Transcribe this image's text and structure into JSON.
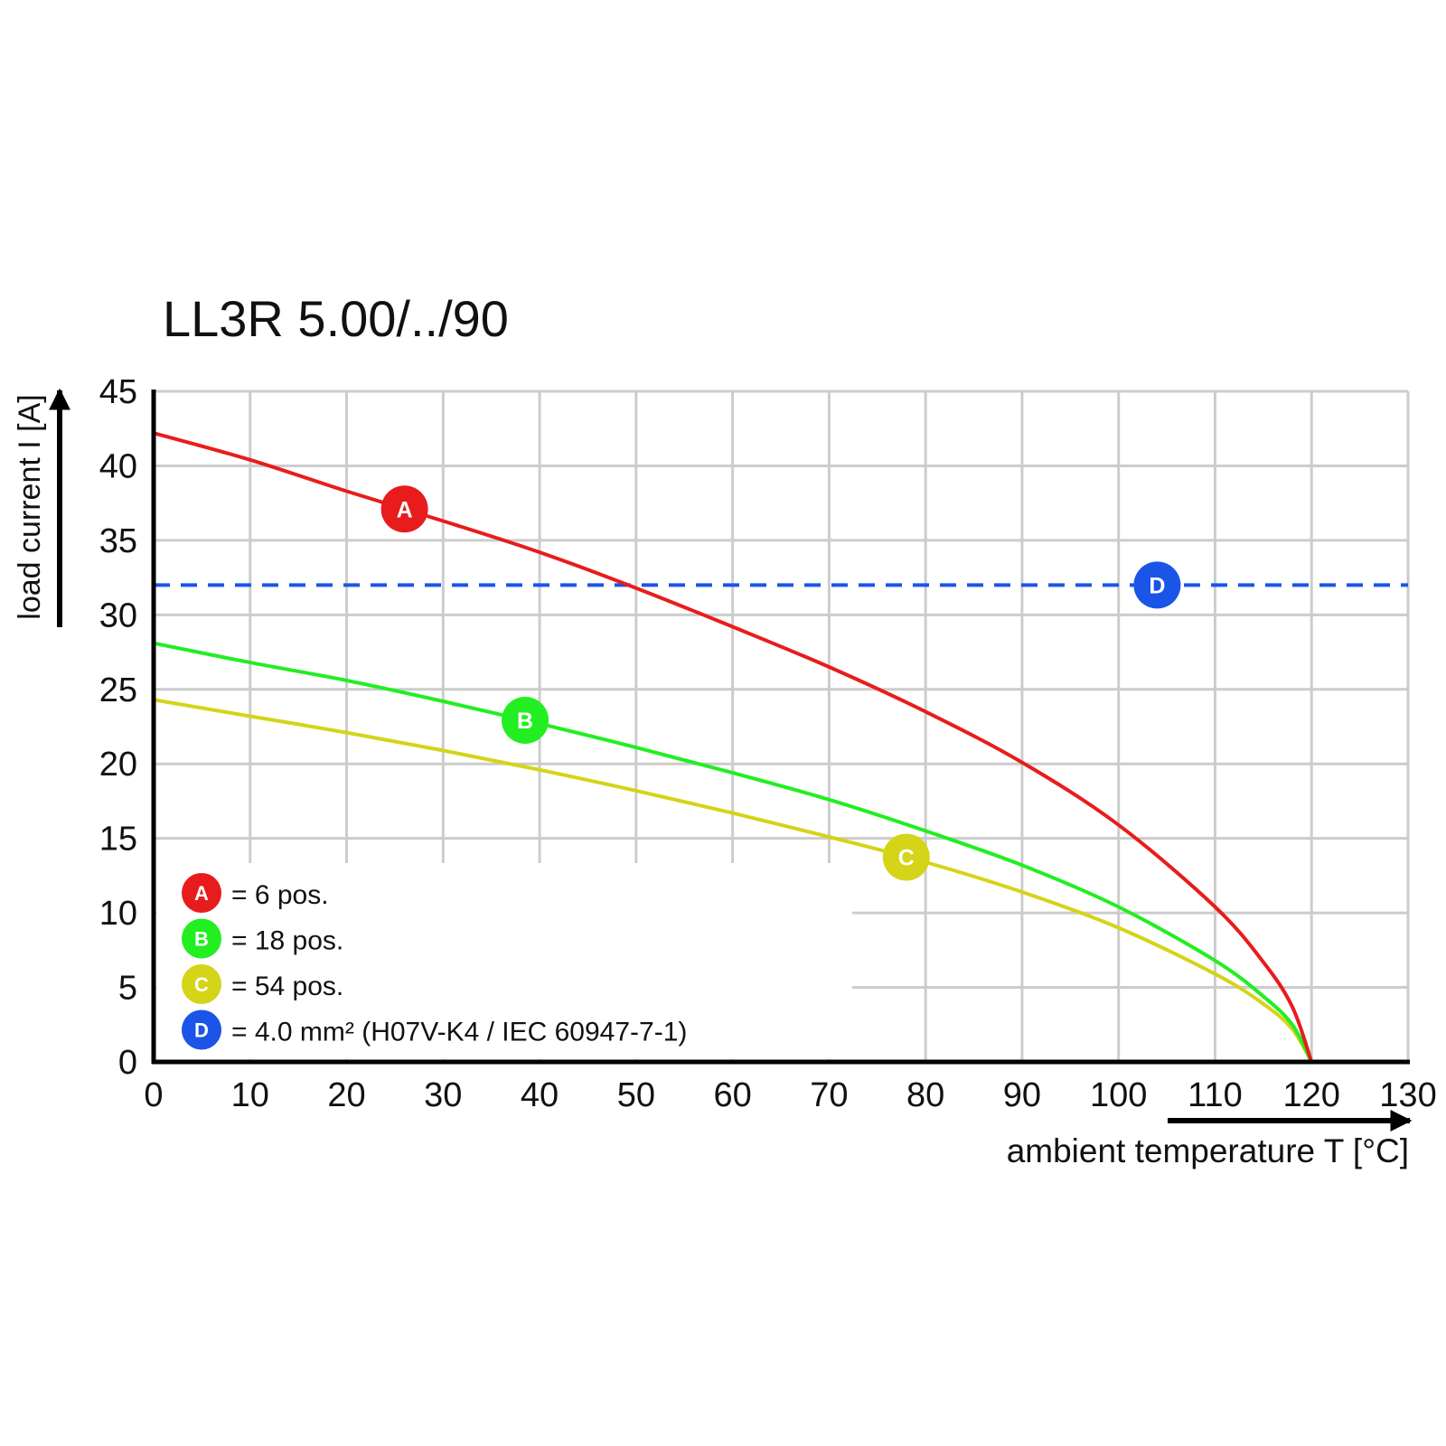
{
  "chart_data": {
    "type": "line",
    "title": "LL3R 5.00/../90",
    "xlabel": "ambient temperature T [°C]",
    "ylabel": "load current I [A]",
    "xlim": [
      0,
      130
    ],
    "ylim": [
      0,
      45
    ],
    "x_ticks": [
      0,
      10,
      20,
      30,
      40,
      50,
      60,
      70,
      80,
      90,
      100,
      110,
      120,
      130
    ],
    "y_ticks": [
      0,
      5,
      10,
      15,
      20,
      25,
      30,
      35,
      40,
      45
    ],
    "grid": true,
    "legend_position": "bottom-left",
    "series": [
      {
        "marker": "A",
        "legend": "= 6 pos.",
        "color": "#e81c1c",
        "style": "solid",
        "marker_at_x": 26,
        "x": [
          0,
          10,
          20,
          30,
          40,
          50,
          60,
          70,
          80,
          90,
          100,
          110,
          115,
          118,
          120
        ],
        "y": [
          42.2,
          40.4,
          38.3,
          36.3,
          34.2,
          31.8,
          29.2,
          26.5,
          23.5,
          20.1,
          15.9,
          10.4,
          6.7,
          3.7,
          0
        ]
      },
      {
        "marker": "B",
        "legend": "= 18 pos.",
        "color": "#22ee22",
        "style": "solid",
        "marker_at_x": 38.5,
        "x": [
          0,
          10,
          20,
          30,
          40,
          50,
          60,
          70,
          80,
          90,
          100,
          110,
          115,
          118,
          120
        ],
        "y": [
          28.1,
          26.8,
          25.6,
          24.2,
          22.7,
          21.1,
          19.4,
          17.6,
          15.5,
          13.2,
          10.4,
          6.8,
          4.4,
          2.5,
          0
        ]
      },
      {
        "marker": "C",
        "legend": "= 54 pos.",
        "color": "#d4d418",
        "style": "solid",
        "marker_at_x": 78,
        "x": [
          0,
          10,
          20,
          30,
          40,
          50,
          60,
          70,
          80,
          90,
          100,
          110,
          115,
          118,
          120
        ],
        "y": [
          24.3,
          23.2,
          22.1,
          20.9,
          19.6,
          18.2,
          16.7,
          15.1,
          13.4,
          11.4,
          9.0,
          5.9,
          3.9,
          2.2,
          0
        ]
      },
      {
        "marker": "D",
        "legend": "= 4.0 mm² (H07V-K4 / IEC 60947-7-1)",
        "color": "#1a55e8",
        "style": "dashed",
        "marker_at_x": 104,
        "x": [
          0,
          130
        ],
        "y": [
          32,
          32
        ]
      }
    ]
  }
}
